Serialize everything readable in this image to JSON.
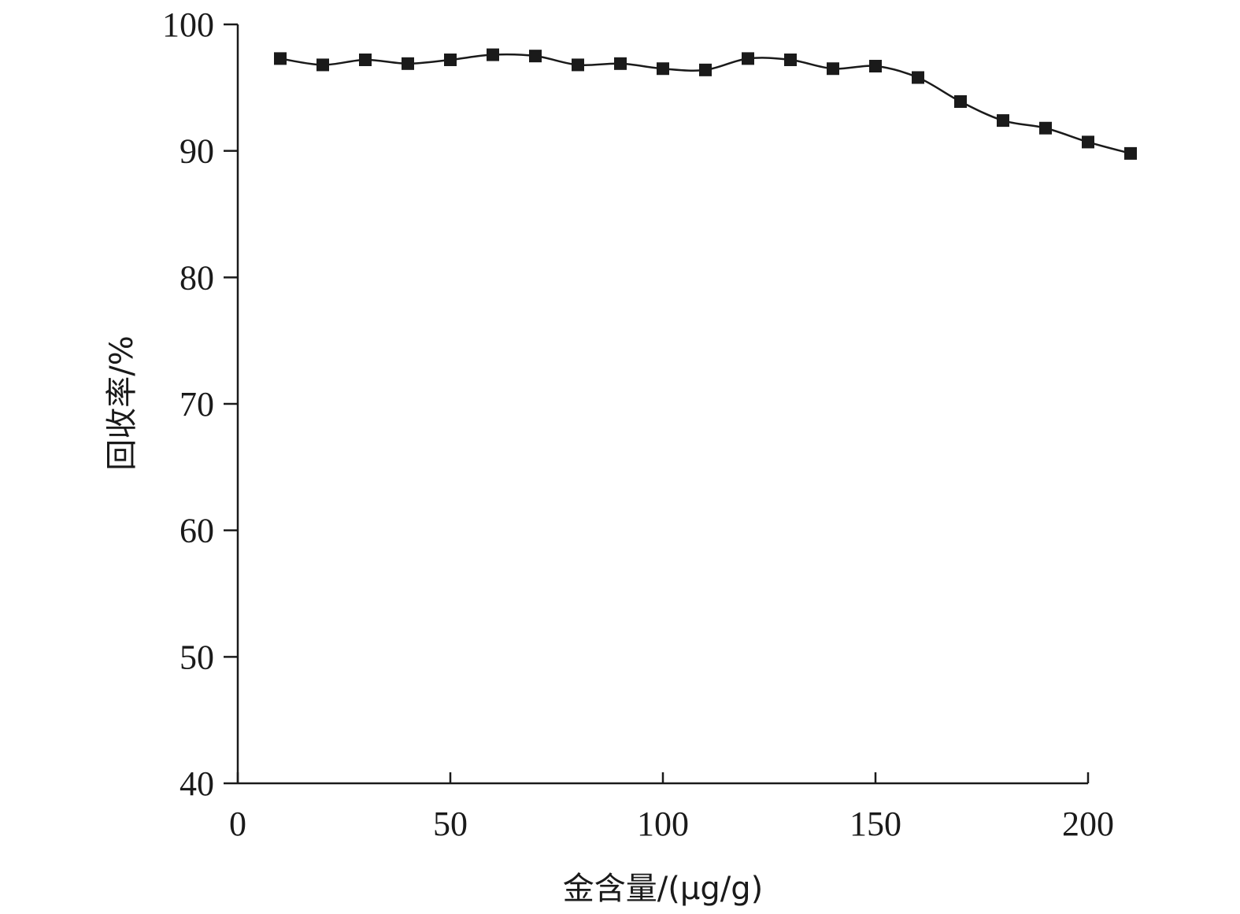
{
  "chart_data": {
    "type": "line",
    "title": "",
    "xlabel": "金含量/(μg/g)",
    "ylabel": "回收率/%",
    "xlim": [
      0,
      200
    ],
    "ylim": [
      40,
      100
    ],
    "xticks": [
      0,
      50,
      100,
      150,
      200
    ],
    "yticks": [
      40,
      50,
      60,
      70,
      80,
      90,
      100
    ],
    "grid": false,
    "legend": "none",
    "marker": "square",
    "line_color": "#1a1a1a",
    "series": [
      {
        "x": [
          10,
          20,
          30,
          40,
          50,
          60,
          70,
          80,
          90,
          100,
          110,
          120,
          130,
          140,
          150,
          160,
          170,
          180,
          190,
          200,
          210
        ],
        "y": [
          97.3,
          96.8,
          97.2,
          96.9,
          97.2,
          97.6,
          97.5,
          96.8,
          96.9,
          96.5,
          96.4,
          97.3,
          97.2,
          96.5,
          96.7,
          95.8,
          93.9,
          92.4,
          91.8,
          90.7,
          89.8
        ]
      }
    ]
  }
}
